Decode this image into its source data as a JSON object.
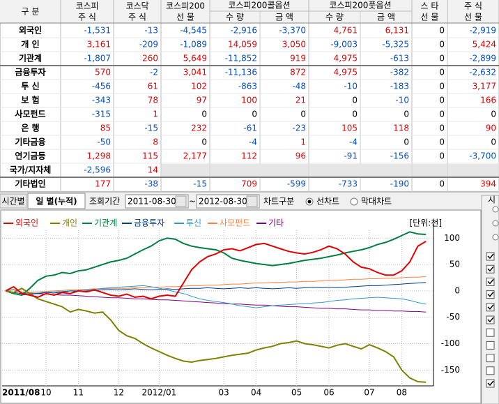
{
  "table": {
    "headers": [
      {
        "lines": [
          "구 분"
        ]
      },
      {
        "lines": [
          "코스피",
          "주 식"
        ]
      },
      {
        "lines": [
          "코스닥",
          "주 식"
        ]
      },
      {
        "lines": [
          "코스피200",
          "선 물"
        ]
      },
      {
        "group": "코스피200콜옵션",
        "sub": [
          "수 량",
          "금 액"
        ]
      },
      {
        "group": "코스피200풋옵션",
        "sub": [
          "수 량",
          "금 액"
        ]
      },
      {
        "lines": [
          "스 타",
          "선 물"
        ]
      },
      {
        "lines": [
          "주 식",
          "선 물"
        ]
      }
    ],
    "rows": [
      {
        "label": "외국인",
        "cells": [
          "-1,531",
          "-13",
          "-4,545",
          "-2,916",
          "-3,370",
          "4,761",
          "6,131",
          "0",
          "-2,919"
        ]
      },
      {
        "label": "개 인",
        "cells": [
          "3,161",
          "-209",
          "-1,089",
          "14,059",
          "3,050",
          "-9,003",
          "-5,325",
          "0",
          "5,424"
        ]
      },
      {
        "label": "기관계",
        "cells": [
          "-1,807",
          "260",
          "5,649",
          "-11,852",
          "919",
          "4,975",
          "-613",
          "0",
          "-2,899"
        ]
      },
      {
        "label": "금융투자",
        "cells": [
          "570",
          "-2",
          "3,041",
          "-11,136",
          "872",
          "4,975",
          "-382",
          "0",
          "-2,632"
        ]
      },
      {
        "label": "투 신",
        "cells": [
          "-456",
          "61",
          "102",
          "-863",
          "-48",
          "-10",
          "-183",
          "0",
          "3,177"
        ]
      },
      {
        "label": "보 험",
        "cells": [
          "-343",
          "78",
          "97",
          "100",
          "21",
          "0",
          "-10",
          "0",
          "166"
        ]
      },
      {
        "label": "사모펀드",
        "cells": [
          "-315",
          "1",
          "0",
          "0",
          "0",
          "0",
          "0",
          "0",
          "0"
        ]
      },
      {
        "label": "은 행",
        "cells": [
          "85",
          "-15",
          "232",
          "-61",
          "-23",
          "105",
          "118",
          "0",
          "90"
        ]
      },
      {
        "label": "기타금융",
        "cells": [
          "-50",
          "8",
          "0",
          "-4",
          "1",
          "-4",
          "0",
          "0",
          "0"
        ]
      },
      {
        "label": "연기금등",
        "cells": [
          "1,298",
          "115",
          "2,177",
          "112",
          "96",
          "-91",
          "-156",
          "0",
          "-3,700"
        ]
      },
      {
        "label": "국가/지자체",
        "cells": [
          "-2,596",
          "14"
        ]
      },
      {
        "label": "기타법인",
        "cells": [
          "177",
          "-38",
          "-15",
          "709",
          "-599",
          "-733",
          "-190",
          "0",
          "394"
        ]
      }
    ]
  },
  "controls": {
    "tabs": [
      "시간별",
      "일 별(누적)"
    ],
    "period_label": "조회기간",
    "start": "2011-08-30",
    "tilde": "~",
    "end": "2012-08-30",
    "chart_kind_label": "차트구분",
    "options": [
      "선차트",
      "막대차트"
    ]
  },
  "side_panel": {
    "title": "시"
  },
  "chart_data": {
    "type": "line",
    "unit_label": "[단위:천]",
    "categories": [
      "2011/08",
      null,
      null,
      null,
      null,
      "10",
      null,
      null,
      null,
      "11",
      null,
      null,
      null,
      null,
      "12",
      null,
      null,
      null,
      null,
      "2012/01",
      null,
      null,
      null,
      null,
      null,
      null,
      null,
      "03",
      null,
      null,
      null,
      "04",
      null,
      null,
      null,
      null,
      "05",
      null,
      null,
      null,
      "06",
      null,
      null,
      null,
      null,
      "07",
      null,
      null,
      null,
      "08",
      null,
      null,
      null
    ],
    "ylim": [
      -180,
      115
    ],
    "yticks": [
      100,
      50,
      0,
      -50,
      -100,
      -150
    ],
    "grid": true,
    "series": [
      {
        "name": "외국인",
        "color": "#e00000",
        "values": [
          0,
          8,
          -5,
          -8,
          -12,
          -5,
          -8,
          -3,
          -5,
          0,
          -2,
          2,
          -3,
          -8,
          -10,
          -6,
          -12,
          -10,
          -15,
          -10,
          -8,
          -10,
          15,
          40,
          55,
          65,
          70,
          78,
          80,
          76,
          82,
          88,
          90,
          85,
          80,
          75,
          72,
          70,
          73,
          78,
          85,
          80,
          70,
          55,
          45,
          42,
          35,
          30,
          30,
          38,
          55,
          85,
          94
        ]
      },
      {
        "name": "개인",
        "color": "#808000",
        "values": [
          0,
          -3,
          5,
          -5,
          -15,
          -20,
          -25,
          -30,
          -40,
          -35,
          -38,
          -42,
          -40,
          -55,
          -75,
          -85,
          -90,
          -100,
          -108,
          -115,
          -122,
          -128,
          -133,
          -135,
          -132,
          -130,
          -128,
          -125,
          -122,
          -120,
          -118,
          -112,
          -108,
          -105,
          -100,
          -98,
          -95,
          -100,
          -102,
          -105,
          -108,
          -103,
          -100,
          -105,
          -110,
          -102,
          -108,
          -115,
          -125,
          -150,
          -165,
          -172,
          -173
        ]
      },
      {
        "name": "기관계",
        "color": "#008040",
        "values": [
          0,
          -5,
          -8,
          5,
          20,
          28,
          30,
          35,
          33,
          38,
          40,
          45,
          50,
          55,
          58,
          62,
          70,
          78,
          85,
          95,
          100,
          98,
          90,
          85,
          82,
          80,
          78,
          72,
          62,
          58,
          55,
          52,
          50,
          48,
          50,
          52,
          55,
          58,
          60,
          62,
          65,
          68,
          72,
          75,
          78,
          82,
          88,
          92,
          98,
          105,
          112,
          108,
          107
        ]
      },
      {
        "name": "금융투자",
        "color": "#003c8c",
        "values": [
          0,
          -5,
          -8,
          -6,
          -5,
          -3,
          -4,
          -2,
          0,
          -1,
          0,
          1,
          2,
          3,
          2,
          3,
          4,
          3,
          2,
          3,
          4,
          3,
          4,
          5,
          5,
          6,
          5,
          4,
          5,
          6,
          5,
          6,
          5,
          4,
          5,
          6,
          5,
          6,
          7,
          6,
          7,
          6,
          7,
          8,
          9,
          10,
          10,
          11,
          12,
          13,
          14,
          15,
          16
        ]
      },
      {
        "name": "투신",
        "color": "#3399cc",
        "values": [
          0,
          2,
          -3,
          -5,
          -4,
          -3,
          -2,
          -1,
          0,
          1,
          2,
          3,
          5,
          6,
          7,
          8,
          9,
          10,
          8,
          5,
          2,
          -2,
          -5,
          -10,
          -15,
          -18,
          -20,
          -22,
          -25,
          -28,
          -30,
          -32,
          -30,
          -28,
          -27,
          -26,
          -25,
          -24,
          -23,
          -22,
          -20,
          -18,
          -17,
          -15,
          -14,
          -13,
          -12,
          -13,
          -14,
          -15,
          -18,
          -22,
          -25
        ]
      },
      {
        "name": "사모펀드",
        "color": "#ff8040",
        "values": [
          0,
          3,
          -2,
          -3,
          -2,
          -1,
          0,
          1,
          2,
          2,
          3,
          4,
          4,
          5,
          5,
          5,
          6,
          6,
          7,
          7,
          8,
          8,
          9,
          10,
          10,
          11,
          11,
          12,
          13,
          13,
          14,
          15,
          15,
          16,
          16,
          17,
          17,
          18,
          18,
          19,
          20,
          20,
          21,
          22,
          22,
          23,
          23,
          24,
          24,
          25,
          26,
          26,
          27
        ]
      },
      {
        "name": "기타",
        "color": "#800080",
        "values": [
          0,
          -3,
          -5,
          -4,
          -5,
          -6,
          -7,
          -8,
          -8,
          -9,
          -10,
          -11,
          -12,
          -13,
          -13,
          -14,
          -15,
          -15,
          -16,
          -17,
          -17,
          -18,
          -19,
          -20,
          -21,
          -22,
          -23,
          -24,
          -25,
          -25,
          -26,
          -27,
          -27,
          -28,
          -29,
          -30,
          -30,
          -31,
          -32,
          -33,
          -33,
          -34,
          -34,
          -35,
          -36,
          -36,
          -37,
          -37,
          -38,
          -38,
          -39,
          -39,
          -40
        ]
      }
    ]
  }
}
